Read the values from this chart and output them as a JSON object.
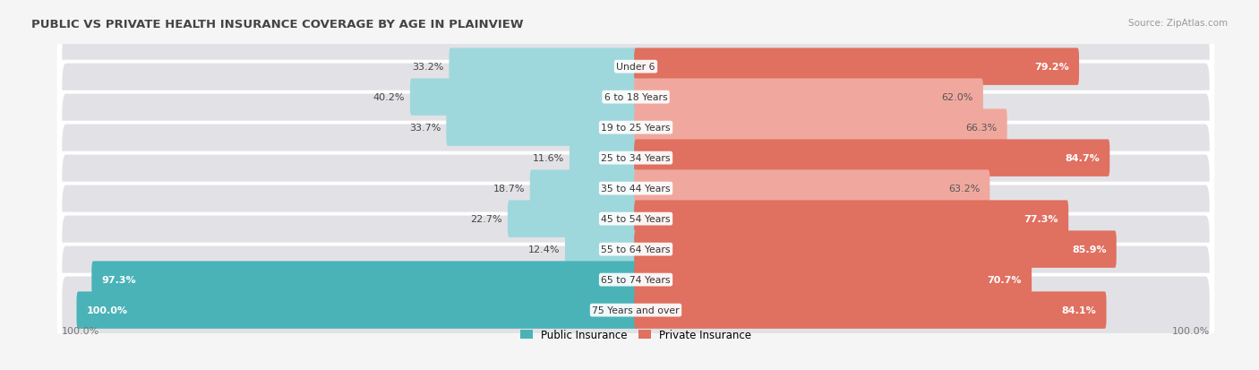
{
  "title": "PUBLIC VS PRIVATE HEALTH INSURANCE COVERAGE BY AGE IN PLAINVIEW",
  "source": "Source: ZipAtlas.com",
  "categories": [
    "Under 6",
    "6 to 18 Years",
    "19 to 25 Years",
    "25 to 34 Years",
    "35 to 44 Years",
    "45 to 54 Years",
    "55 to 64 Years",
    "65 to 74 Years",
    "75 Years and over"
  ],
  "public_values": [
    33.2,
    40.2,
    33.7,
    11.6,
    18.7,
    22.7,
    12.4,
    97.3,
    100.0
  ],
  "private_values": [
    79.2,
    62.0,
    66.3,
    84.7,
    63.2,
    77.3,
    85.9,
    70.7,
    84.1
  ],
  "public_color_dark": "#4ab3b8",
  "public_color_light": "#9fd8dc",
  "private_color_dark": "#e07060",
  "private_color_light": "#f0a89e",
  "row_bg_color": "#e2e2e6",
  "row_border_color": "#ffffff",
  "label_white": "#ffffff",
  "label_dark": "#444444",
  "max_value": 100.0,
  "bar_height": 0.62,
  "legend_labels": [
    "Public Insurance",
    "Private Insurance"
  ],
  "fig_bg": "#f5f5f5",
  "public_dark_threshold": 50.0,
  "private_dark_threshold": 70.0
}
